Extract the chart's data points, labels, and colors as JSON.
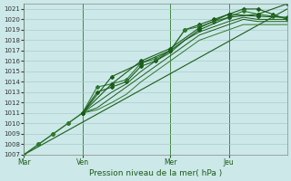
{
  "xlabel": "Pression niveau de la mer( hPa )",
  "background_color": "#cce8e8",
  "grid_color": "#aacccc",
  "line_color_dark": "#1a5c1a",
  "line_color_medium": "#2d7a2d",
  "ylim": [
    1007,
    1021.5
  ],
  "yticks": [
    1007,
    1008,
    1009,
    1010,
    1011,
    1012,
    1013,
    1014,
    1015,
    1016,
    1017,
    1018,
    1019,
    1020,
    1021
  ],
  "xtick_labels": [
    "Mar",
    "Ven",
    "Mer",
    "Jeu"
  ],
  "xtick_positions": [
    0,
    24,
    60,
    84
  ],
  "vline_positions": [
    0,
    24,
    60,
    84
  ],
  "total_points": 108,
  "series": {
    "smooth_base": {
      "x": [
        0,
        108
      ],
      "y": [
        1007.0,
        1021.0
      ],
      "marker": false,
      "color": "#1a5c1a",
      "lw": 0.8
    },
    "line1": {
      "x": [
        0,
        6,
        12,
        18,
        24,
        30,
        36,
        42,
        48,
        54,
        60,
        66,
        72,
        78,
        84,
        90,
        96,
        102,
        108
      ],
      "y": [
        1007.0,
        1008.0,
        1009.0,
        1010.0,
        1011.0,
        1013.0,
        1013.5,
        1014.0,
        1015.5,
        1016.0,
        1017.0,
        1019.0,
        1019.5,
        1020.0,
        1020.5,
        1021.0,
        1021.0,
        1020.5,
        1020.0
      ],
      "marker": true,
      "color": "#1a5c1a",
      "lw": 0.8
    },
    "line2": {
      "x": [
        0,
        6,
        12,
        18,
        24,
        30,
        36,
        42,
        48,
        54,
        60,
        66,
        72,
        78,
        84,
        90,
        96,
        102,
        108
      ],
      "y": [
        1007.0,
        1008.0,
        1009.0,
        1010.0,
        1011.0,
        1013.5,
        1013.8,
        1014.2,
        1015.8,
        1016.2,
        1017.0,
        1019.0,
        1019.3,
        1019.8,
        1020.2,
        1020.8,
        1020.5,
        1020.3,
        1020.1
      ],
      "marker": true,
      "color": "#2d7a2d",
      "lw": 0.8
    },
    "line3": {
      "x": [
        24,
        30,
        36,
        42,
        48,
        54,
        60,
        66,
        72,
        78,
        84,
        90,
        96,
        102,
        108
      ],
      "y": [
        1011.0,
        1012.0,
        1013.0,
        1013.8,
        1015.0,
        1016.0,
        1016.8,
        1018.0,
        1018.8,
        1019.3,
        1019.8,
        1020.2,
        1020.0,
        1020.0,
        1020.0
      ],
      "marker": false,
      "color": "#1a5c1a",
      "lw": 0.7
    },
    "line4": {
      "x": [
        24,
        30,
        36,
        42,
        48,
        54,
        60,
        66,
        72,
        78,
        84,
        90,
        96,
        102,
        108
      ],
      "y": [
        1011.0,
        1011.5,
        1012.5,
        1013.5,
        1014.5,
        1015.5,
        1016.5,
        1017.5,
        1018.5,
        1019.0,
        1019.5,
        1020.0,
        1019.8,
        1019.8,
        1019.8
      ],
      "marker": false,
      "color": "#1a5c1a",
      "lw": 0.7
    },
    "line5": {
      "x": [
        24,
        30,
        36,
        42,
        48,
        54,
        60,
        66,
        72,
        78,
        84,
        90,
        96,
        102,
        108
      ],
      "y": [
        1011.0,
        1011.3,
        1012.0,
        1012.8,
        1014.0,
        1015.0,
        1016.0,
        1017.0,
        1018.0,
        1018.5,
        1019.0,
        1019.5,
        1019.5,
        1019.5,
        1019.5
      ],
      "marker": false,
      "color": "#2d7a2d",
      "lw": 0.7
    },
    "line_fan1": {
      "x": [
        24,
        36,
        48,
        60,
        72,
        84,
        96,
        108
      ],
      "y": [
        1011.0,
        1013.8,
        1016.0,
        1017.2,
        1019.2,
        1020.5,
        1020.3,
        1020.2
      ],
      "marker": true,
      "color": "#1a5c1a",
      "lw": 0.8
    },
    "line_fan2": {
      "x": [
        24,
        36,
        48,
        60,
        72,
        84,
        96,
        108
      ],
      "y": [
        1011.0,
        1014.5,
        1015.8,
        1017.0,
        1019.0,
        1020.2,
        1020.5,
        1021.5
      ],
      "marker": true,
      "color": "#1a5c1a",
      "lw": 0.8
    }
  }
}
